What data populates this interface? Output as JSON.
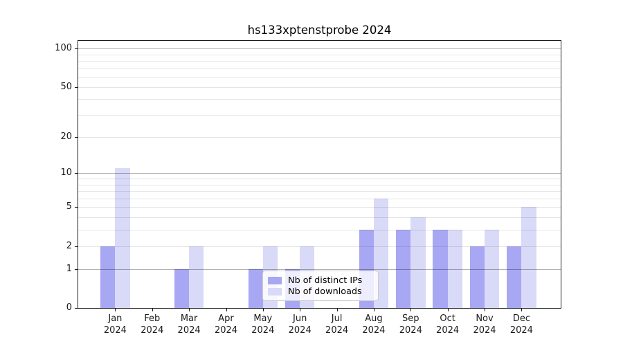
{
  "chart_data": {
    "type": "bar",
    "title": "hs133xptenstprobe 2024",
    "categories": [
      "Jan",
      "Feb",
      "Mar",
      "Apr",
      "May",
      "Jun",
      "Jul",
      "Aug",
      "Sep",
      "Oct",
      "Nov",
      "Dec"
    ],
    "category_year": "2024",
    "series": [
      {
        "name": "Nb of distinct IPs",
        "color": "#a7a7f3",
        "values": [
          2,
          0,
          1,
          0,
          1,
          1,
          0,
          3,
          3,
          3,
          2,
          2
        ]
      },
      {
        "name": "Nb of downloads",
        "color": "#d9d9f8",
        "values": [
          11,
          0,
          2,
          0,
          2,
          2,
          0,
          6,
          4,
          3,
          3,
          5
        ]
      }
    ],
    "yticks": [
      0,
      1,
      2,
      5,
      10,
      20,
      50,
      100
    ],
    "minor_gridlines": [
      2,
      3,
      4,
      5,
      6,
      7,
      8,
      9,
      20,
      30,
      40,
      50,
      60,
      70,
      80,
      90
    ],
    "major_gridlines": [
      1,
      10,
      100
    ],
    "ylim": [
      0,
      114
    ],
    "yscale": "log1p",
    "xlabel": "",
    "ylabel": "",
    "grid": "horizontal",
    "legend_position": "lower center",
    "colors": {
      "background": "#ffffff",
      "spine": "#1a1a1a",
      "tick_text": "#1a1a1a"
    }
  }
}
